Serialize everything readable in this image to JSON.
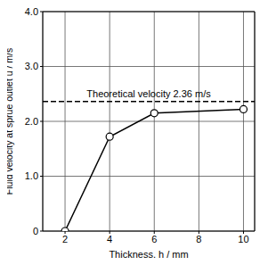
{
  "chart_data": {
    "type": "line",
    "x_label": "Thickness, h / mm",
    "y_label": "Fluid velocity at sprue outlet u / m/s",
    "x": [
      2,
      4,
      6,
      10
    ],
    "series": [
      {
        "name": "Fluid velocity",
        "color": "#000000",
        "marker": "o",
        "line_style": "solid",
        "values": [
          0,
          1.72,
          2.15,
          2.22
        ]
      }
    ],
    "xlim": [
      1,
      10.5
    ],
    "xticks": [
      2,
      4,
      6,
      8,
      10
    ],
    "ylim": [
      0,
      4
    ],
    "yticks": [
      {
        "value": 0,
        "label": "0"
      },
      {
        "value": 1,
        "label": "1.0"
      },
      {
        "value": 2,
        "label": "2.0"
      },
      {
        "value": 3,
        "label": "3.0"
      },
      {
        "value": 4,
        "label": "4.0"
      }
    ],
    "grid": true,
    "reference": {
      "value": 2.36,
      "label": "Theoretical velocity 2.36 m/s"
    }
  }
}
